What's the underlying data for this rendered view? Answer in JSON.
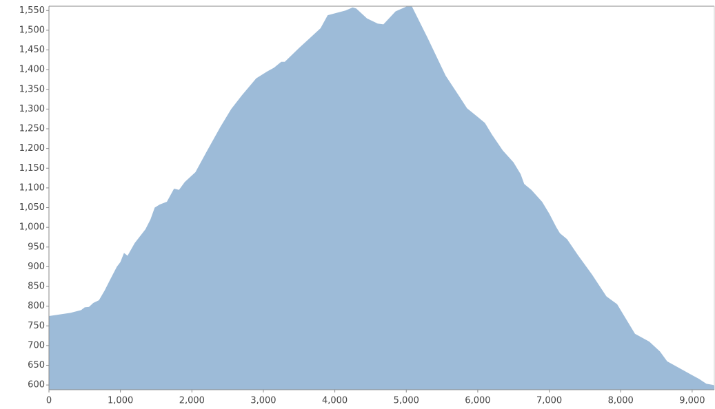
{
  "chart_data": {
    "type": "area",
    "color": "#9dbbd8",
    "x": [
      0,
      300,
      450,
      500,
      560,
      620,
      700,
      780,
      850,
      950,
      1000,
      1050,
      1100,
      1200,
      1350,
      1420,
      1480,
      1550,
      1650,
      1750,
      1820,
      1900,
      2050,
      2200,
      2400,
      2550,
      2700,
      2900,
      3050,
      3150,
      3250,
      3300,
      3500,
      3650,
      3800,
      3900,
      4150,
      4250,
      4300,
      4450,
      4600,
      4680,
      4850,
      5000,
      5080,
      5300,
      5550,
      5750,
      5850,
      6000,
      6100,
      6200,
      6350,
      6500,
      6600,
      6650,
      6750,
      6900,
      7000,
      7100,
      7150,
      7250,
      7400,
      7600,
      7800,
      7950,
      8050,
      8200,
      8400,
      8550,
      8650,
      8800,
      9000,
      9100,
      9200,
      9300,
      9310
    ],
    "values": [
      775,
      783,
      790,
      797,
      798,
      808,
      815,
      840,
      865,
      900,
      912,
      935,
      928,
      960,
      995,
      1020,
      1050,
      1058,
      1065,
      1098,
      1095,
      1115,
      1140,
      1190,
      1255,
      1300,
      1335,
      1378,
      1395,
      1405,
      1420,
      1420,
      1455,
      1480,
      1505,
      1538,
      1550,
      1558,
      1555,
      1530,
      1517,
      1515,
      1548,
      1560,
      1560,
      1480,
      1385,
      1330,
      1302,
      1280,
      1265,
      1235,
      1195,
      1165,
      1135,
      1110,
      1095,
      1065,
      1035,
      1000,
      985,
      970,
      930,
      880,
      825,
      805,
      775,
      730,
      710,
      685,
      660,
      645,
      625,
      615,
      603,
      600,
      596
    ],
    "xlim": [
      0,
      9310
    ],
    "ylim": [
      588,
      1561
    ],
    "xticks": [
      0,
      {
        "value": 1000,
        "label": "1,000"
      },
      {
        "value": 2000,
        "label": "2,000"
      },
      {
        "value": 3000,
        "label": "3,000"
      },
      {
        "value": 4000,
        "label": "4,000"
      },
      {
        "value": 5000,
        "label": "5,000"
      },
      {
        "value": 6000,
        "label": "6,000"
      },
      {
        "value": 7000,
        "label": "7,000"
      },
      {
        "value": 8000,
        "label": "8,000"
      },
      {
        "value": 9000,
        "label": "9,000"
      }
    ],
    "yticks": [
      600,
      650,
      700,
      750,
      800,
      850,
      900,
      950,
      {
        "value": 1000,
        "label": "1,000"
      },
      {
        "value": 1050,
        "label": "1,050"
      },
      {
        "value": 1100,
        "label": "1,100"
      },
      {
        "value": 1150,
        "label": "1,150"
      },
      {
        "value": 1200,
        "label": "1,200"
      },
      {
        "value": 1250,
        "label": "1,250"
      },
      {
        "value": 1300,
        "label": "1,300"
      },
      {
        "value": 1350,
        "label": "1,350"
      },
      {
        "value": 1400,
        "label": "1,400"
      },
      {
        "value": 1450,
        "label": "1,450"
      },
      {
        "value": 1500,
        "label": "1,500"
      },
      {
        "value": 1550,
        "label": "1,550"
      }
    ]
  }
}
